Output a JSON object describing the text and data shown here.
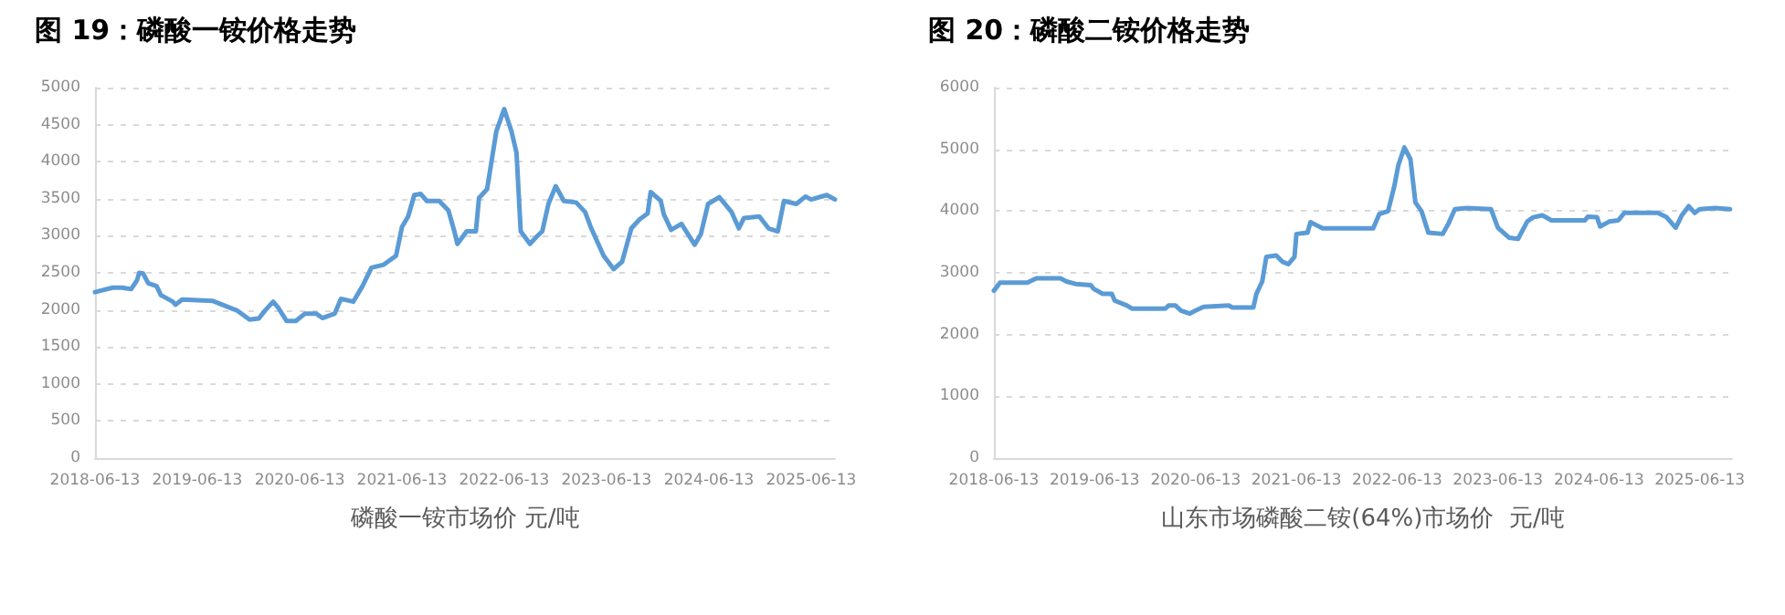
{
  "chart_data": [
    {
      "type": "line",
      "title": "图 19：磷酸一铵价格走势",
      "xlabel": "磷酸一铵市场价 元/吨",
      "grid": "y",
      "line_style": "solid",
      "marker": "none",
      "x": [
        "2018-06-13",
        "2018-08-15",
        "2018-09-17",
        "2018-10-20",
        "2018-11-10",
        "2018-11-18",
        "2018-12-02",
        "2018-12-20",
        "2019-01-19",
        "2019-02-03",
        "2019-03-18",
        "2019-03-28",
        "2019-04-20",
        "2019-08-08",
        "2019-09-10",
        "2019-11-03",
        "2019-12-17",
        "2020-01-19",
        "2020-02-10",
        "2020-03-10",
        "2020-03-28",
        "2020-04-27",
        "2020-05-30",
        "2020-07-02",
        "2020-08-11",
        "2020-09-02",
        "2020-10-16",
        "2020-11-07",
        "2020-12-21",
        "2021-01-23",
        "2021-02-24",
        "2021-04-09",
        "2021-05-23",
        "2021-06-13",
        "2021-07-05",
        "2021-07-27",
        "2021-08-19",
        "2021-09-10",
        "2021-10-24",
        "2021-11-26",
        "2021-12-17",
        "2021-12-28",
        "2022-01-30",
        "2022-03-04",
        "2022-03-15",
        "2022-04-13",
        "2022-05-16",
        "2022-06-13",
        "2022-07-09",
        "2022-07-27",
        "2022-08-11",
        "2022-09-13",
        "2022-10-05",
        "2022-10-27",
        "2022-11-18",
        "2022-12-14",
        "2023-01-12",
        "2023-02-25",
        "2023-03-29",
        "2023-04-20",
        "2023-06-03",
        "2023-07-09",
        "2023-08-08",
        "2023-09-10",
        "2023-10-09",
        "2023-11-07",
        "2023-11-18",
        "2023-12-24",
        "2024-01-04",
        "2024-01-30",
        "2024-03-07",
        "2024-04-23",
        "2024-05-15",
        "2024-06-10",
        "2024-07-20",
        "2024-09-02",
        "2024-09-28",
        "2024-10-16",
        "2024-12-10",
        "2025-01-12",
        "2025-02-14",
        "2025-03-08",
        "2025-04-21",
        "2025-05-24",
        "2025-06-13",
        "2025-08-08",
        "2025-09-06"
      ],
      "series": [
        {
          "color": "#5b9bd5",
          "values": [
            2240,
            2300,
            2300,
            2280,
            2400,
            2500,
            2490,
            2360,
            2320,
            2200,
            2110,
            2070,
            2140,
            2120,
            2070,
            1990,
            1870,
            1885,
            1990,
            2110,
            2030,
            1850,
            1850,
            1950,
            1950,
            1890,
            1950,
            2150,
            2110,
            2320,
            2570,
            2610,
            2730,
            3120,
            3260,
            3550,
            3565,
            3470,
            3470,
            3340,
            3060,
            2890,
            3060,
            3060,
            3510,
            3630,
            4410,
            4710,
            4410,
            4120,
            3060,
            2890,
            2980,
            3060,
            3430,
            3670,
            3470,
            3450,
            3320,
            3100,
            2730,
            2550,
            2650,
            3100,
            3220,
            3300,
            3590,
            3470,
            3290,
            3080,
            3160,
            2880,
            3020,
            3430,
            3520,
            3320,
            3100,
            3240,
            3260,
            3100,
            3060,
            3470,
            3430,
            3530,
            3490,
            3550,
            3490
          ]
        }
      ],
      "xlim": [
        "2018-06-13",
        "2025-09-06"
      ],
      "xticks": [
        "2018-06-13",
        "2019-06-13",
        "2020-06-13",
        "2021-06-13",
        "2022-06-13",
        "2023-06-13",
        "2024-06-13",
        "2025-06-13"
      ],
      "ylim": [
        0,
        5000
      ],
      "yticks": [
        0,
        500,
        1000,
        1500,
        2000,
        2500,
        3000,
        3500,
        4000,
        4500,
        5000
      ]
    },
    {
      "type": "line",
      "title": "图 20：磷酸二铵价格走势",
      "xlabel": "山东市场磷酸二铵(64%)市场价  元/吨",
      "grid": "y",
      "line_style": "solid",
      "marker": "none",
      "x": [
        "2018-06-13",
        "2018-07-05",
        "2018-10-12",
        "2018-11-14",
        "2019-02-09",
        "2019-03-03",
        "2019-04-05",
        "2019-05-30",
        "2019-06-10",
        "2019-07-12",
        "2019-08-14",
        "2019-08-25",
        "2019-10-08",
        "2019-10-26",
        "2020-02-24",
        "2020-03-07",
        "2020-04-01",
        "2020-04-20",
        "2020-05-22",
        "2020-06-13",
        "2020-07-12",
        "2020-10-12",
        "2020-10-23",
        "2021-01-08",
        "2021-01-19",
        "2021-02-09",
        "2021-02-24",
        "2021-04-01",
        "2021-04-23",
        "2021-05-15",
        "2021-06-06",
        "2021-06-13",
        "2021-07-23",
        "2021-08-03",
        "2021-08-25",
        "2021-09-16",
        "2021-11-28",
        "2022-03-18",
        "2022-04-09",
        "2022-05-11",
        "2022-06-02",
        "2022-06-17",
        "2022-07-09",
        "2022-07-31",
        "2022-08-18",
        "2022-09-09",
        "2022-10-04",
        "2022-11-25",
        "2022-12-16",
        "2023-01-08",
        "2023-02-20",
        "2023-05-19",
        "2023-06-13",
        "2023-07-23",
        "2023-08-25",
        "2023-09-27",
        "2023-10-19",
        "2023-11-21",
        "2023-12-24",
        "2024-04-23",
        "2024-05-04",
        "2024-06-06",
        "2024-06-17",
        "2024-07-20",
        "2024-08-22",
        "2024-09-13",
        "2025-01-12",
        "2025-02-13",
        "2025-03-18",
        "2025-04-09",
        "2025-05-04",
        "2025-05-26",
        "2025-06-13",
        "2025-08-07",
        "2025-10-01"
      ],
      "series": [
        {
          "color": "#5b9bd5",
          "values": [
            2710,
            2840,
            2840,
            2910,
            2910,
            2860,
            2820,
            2800,
            2740,
            2660,
            2660,
            2550,
            2470,
            2420,
            2420,
            2470,
            2470,
            2390,
            2340,
            2390,
            2450,
            2470,
            2440,
            2440,
            2660,
            2860,
            3260,
            3280,
            3180,
            3140,
            3260,
            3630,
            3650,
            3820,
            3770,
            3720,
            3720,
            3720,
            3950,
            4000,
            4390,
            4740,
            5030,
            4840,
            4140,
            4000,
            3650,
            3630,
            3800,
            4030,
            4050,
            4030,
            3730,
            3570,
            3550,
            3830,
            3900,
            3930,
            3850,
            3850,
            3910,
            3900,
            3750,
            3830,
            3850,
            3970,
            3970,
            3900,
            3730,
            3930,
            4080,
            3970,
            4030,
            4050,
            4030
          ]
        }
      ],
      "xlim": [
        "2018-06-13",
        "2025-10-08"
      ],
      "xticks": [
        "2018-06-13",
        "2019-06-13",
        "2020-06-13",
        "2021-06-13",
        "2022-06-13",
        "2023-06-13",
        "2024-06-13",
        "2025-06-13"
      ],
      "ylim": [
        0,
        6000
      ],
      "yticks": [
        0,
        1000,
        2000,
        3000,
        4000,
        5000,
        6000
      ]
    }
  ]
}
